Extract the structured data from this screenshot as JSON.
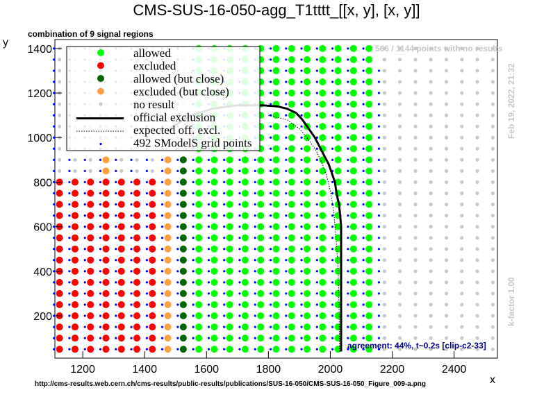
{
  "title": "CMS-SUS-16-050-agg_T1tttt_[[x, y], [x, y]]",
  "subtitle": "combination of 9 signal regions",
  "source_url": "http://cms-results.web.cern.ch/cms-results/public-results/publications/SUS-16-050/CMS-SUS-16-050_Figure_009-a.png",
  "no_result_note": "566 / 1144 points with no results",
  "date_note": "Feb 19, 2022, 21:32",
  "kfactor_note": "k-factor 1.00",
  "agreement_note": "agreement: 44%, t~0.2s [clip-c2-33]",
  "colors": {
    "allowed": "#00ff00",
    "excluded": "#ff0000",
    "allowed_close": "#006400",
    "excluded_close": "#ffa040",
    "no_result": "#c8c8c8",
    "grid_point": "#0000ff",
    "official": "#000000",
    "expected": "#000000"
  },
  "chart_data": {
    "type": "scatter",
    "xlabel": "x",
    "ylabel": "y",
    "xlim": [
      1110,
      2540
    ],
    "ylim": [
      10,
      1440
    ],
    "xticks": [
      1200,
      1400,
      1600,
      1800,
      2000,
      2200,
      2400
    ],
    "yticks": [
      200,
      400,
      600,
      800,
      1000,
      1200,
      1400
    ],
    "legend": {
      "position": "top-left",
      "entries": [
        {
          "key": "allowed",
          "label": "allowed",
          "symbol": "dot"
        },
        {
          "key": "excluded",
          "label": "excluded",
          "symbol": "dot"
        },
        {
          "key": "allowed_close",
          "label": "allowed (but close)",
          "symbol": "dot"
        },
        {
          "key": "excluded_close",
          "label": "excluded (but close)",
          "symbol": "dot"
        },
        {
          "key": "no_result",
          "label": "no result",
          "symbol": "small-dot"
        },
        {
          "key": "official",
          "label": "official exclusion",
          "symbol": "thick-line"
        },
        {
          "key": "expected",
          "label": "expected off. excl.",
          "symbol": "dotted-line"
        },
        {
          "key": "grid_point",
          "label": "492 SModelS grid points",
          "symbol": "tiny-dot"
        }
      ]
    },
    "point_grid": {
      "x_start": 1125,
      "x_step": 50,
      "x_count": 29,
      "y_start": 50,
      "y_step": 50,
      "y_count": 28,
      "classes": [
        {
          "cls": "excluded",
          "x_min": 1125,
          "x_max": 1425,
          "y_max": 800
        },
        {
          "cls": "excluded_close",
          "x_min": 1275,
          "x_max": 1275,
          "y_max": 900
        },
        {
          "cls": "excluded_close",
          "x_min": 1475,
          "x_max": 1475,
          "y_max": 900
        },
        {
          "cls": "allowed_close",
          "x_min": 1525,
          "x_max": 1525,
          "y_max": 900
        },
        {
          "cls": "allowed",
          "x_min": 1575,
          "x_max": 2125,
          "y_max": 1400
        },
        {
          "cls": "no_result",
          "x_min": 2175,
          "x_max": 2525,
          "y_max": 1400
        }
      ]
    },
    "official_exclusion": {
      "x": [
        1480,
        1550,
        1620,
        1700,
        1780,
        1830,
        1860,
        1890,
        1910,
        1930,
        1950,
        1965,
        1980,
        1995,
        2005,
        2015,
        2020,
        2028,
        2032,
        2035,
        2035,
        2035,
        2035
      ],
      "y": [
        1040,
        1100,
        1130,
        1145,
        1145,
        1140,
        1130,
        1110,
        1080,
        1040,
        1000,
        960,
        920,
        880,
        840,
        800,
        750,
        700,
        650,
        600,
        400,
        200,
        40
      ]
    },
    "expected_exclusion": {
      "x": [
        1800,
        1860,
        1900,
        1930,
        1955,
        1975,
        1990,
        2000,
        2010,
        2018,
        2025,
        2028,
        2030
      ],
      "y": [
        1100,
        1080,
        1040,
        990,
        940,
        880,
        820,
        760,
        680,
        560,
        420,
        250,
        40
      ]
    }
  }
}
